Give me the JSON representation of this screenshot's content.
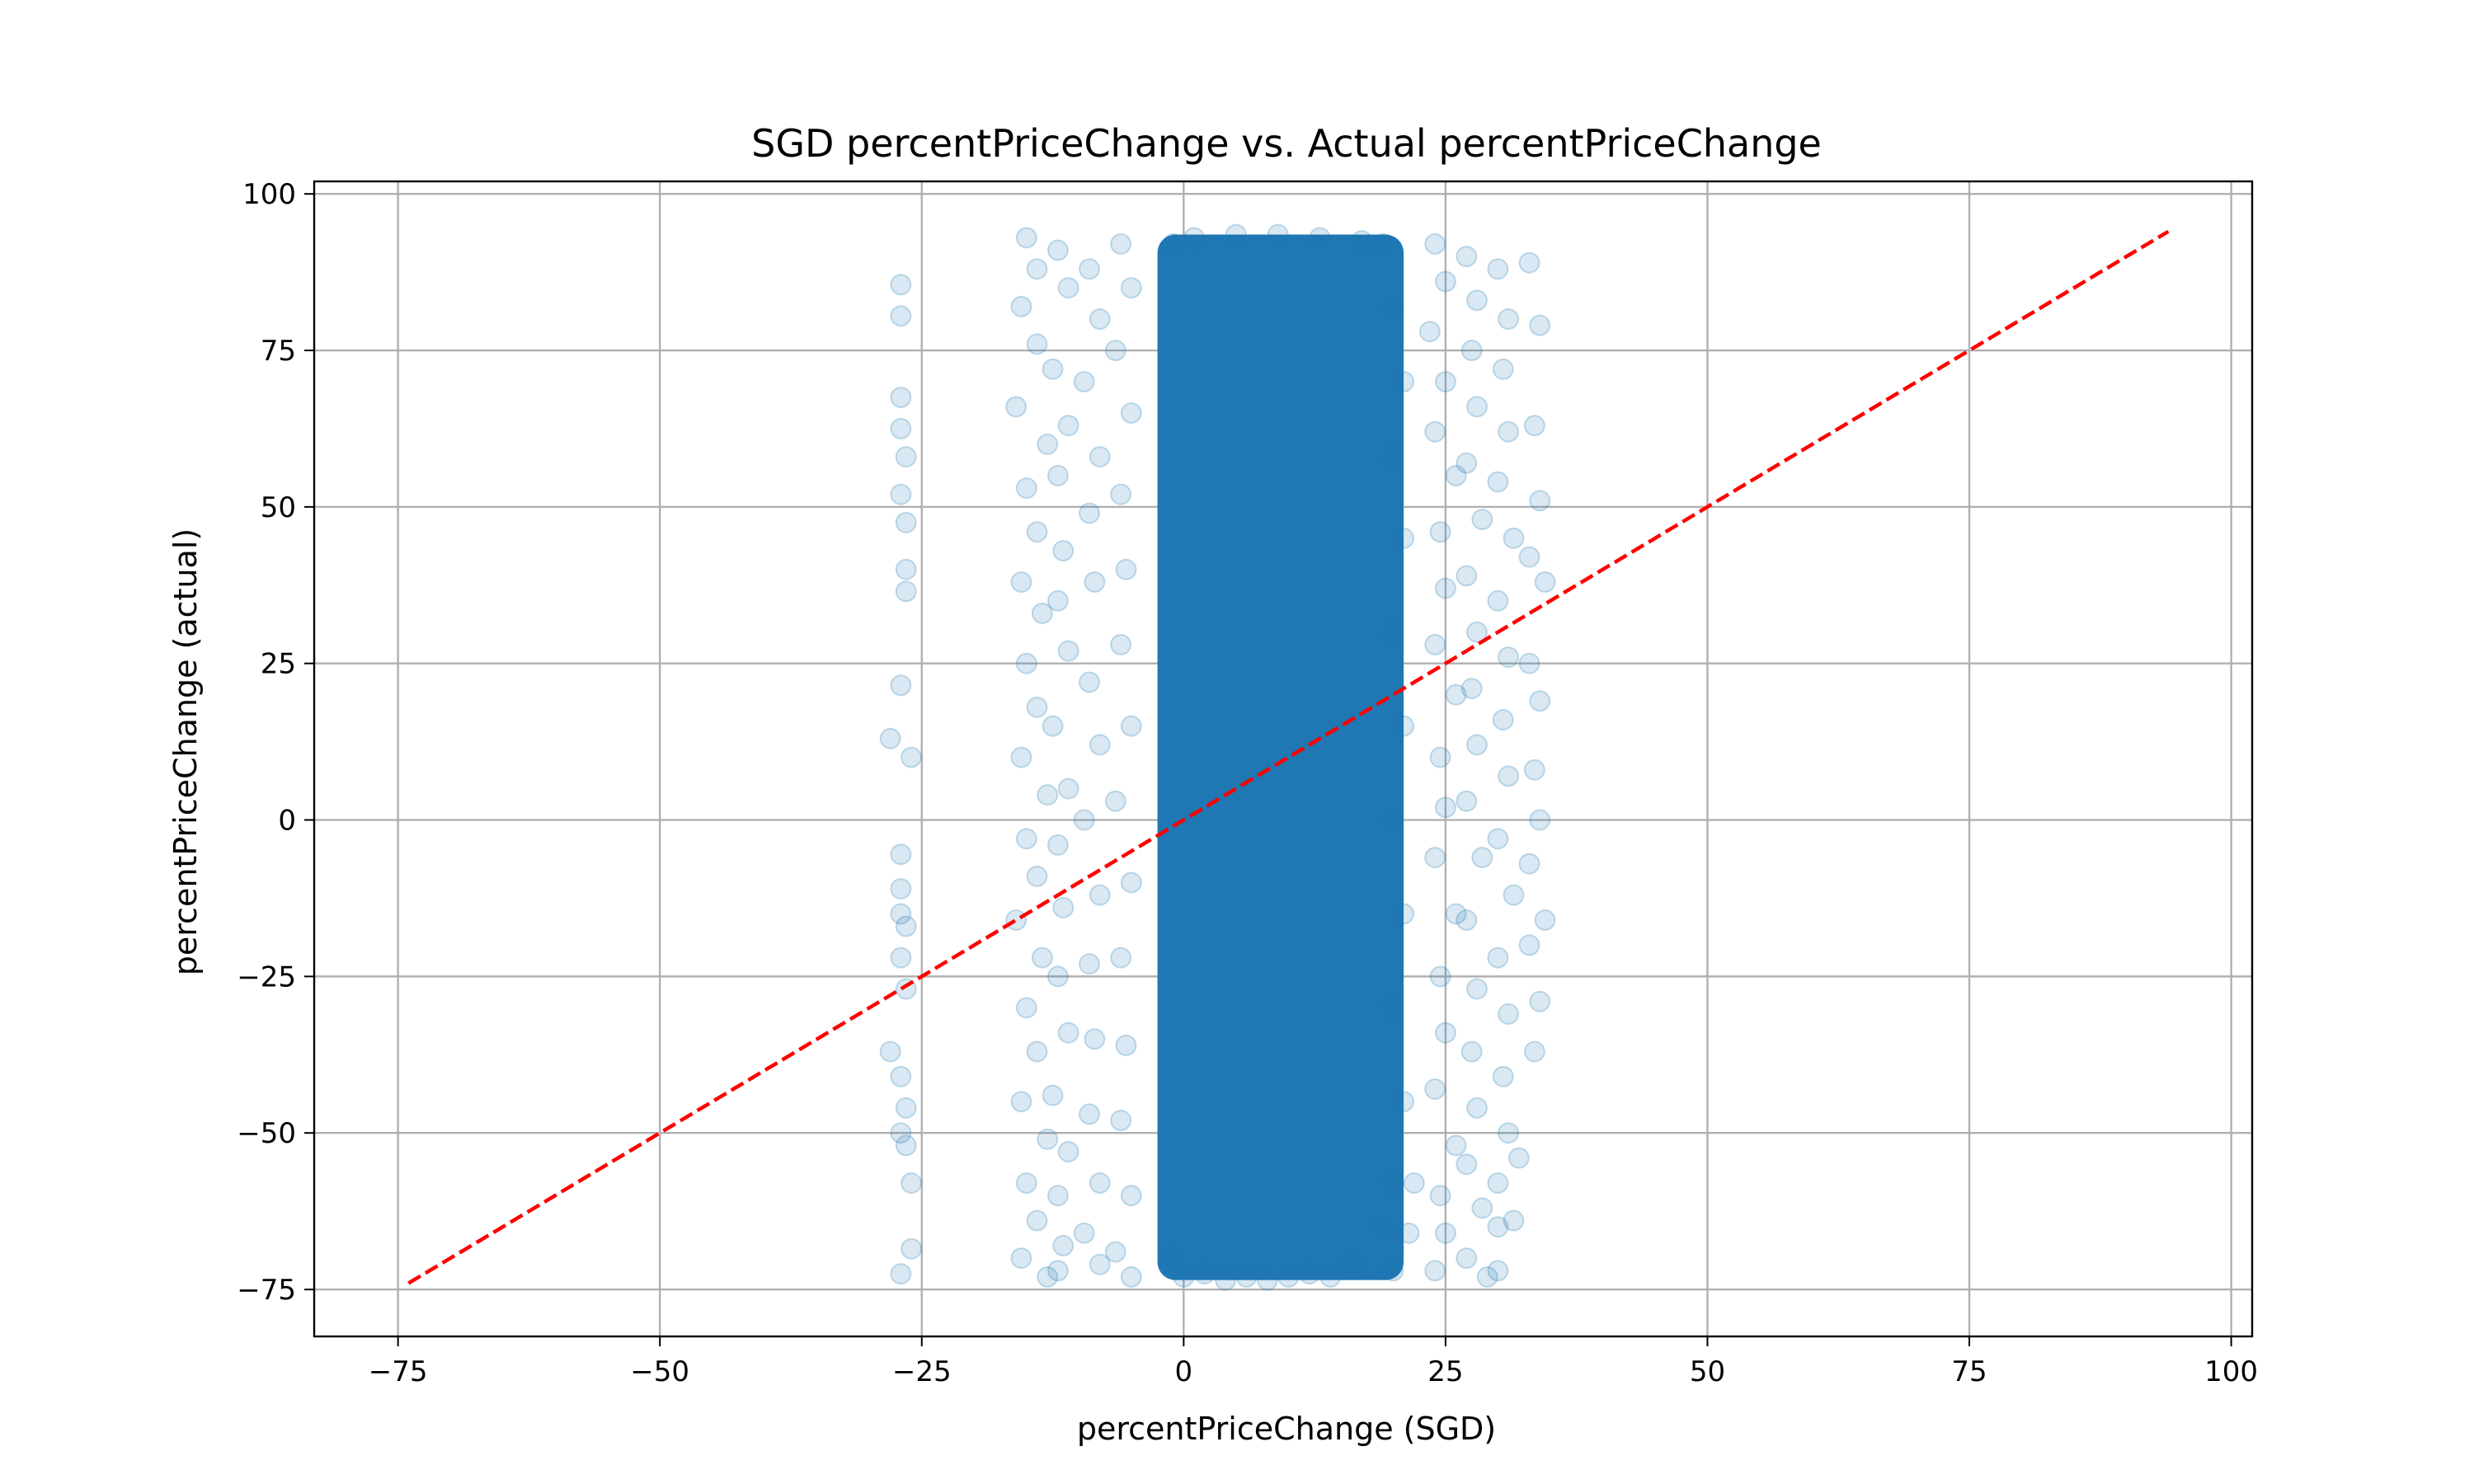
{
  "chart_data": {
    "type": "scatter",
    "title": "SGD percentPriceChange vs. Actual percentPriceChange",
    "xlabel": "percentPriceChange (SGD)",
    "ylabel": "percentPriceChange (actual)",
    "xlim": [
      -83,
      102
    ],
    "ylim": [
      -82.5,
      102
    ],
    "x_ticks": [
      -75,
      -50,
      -25,
      0,
      25,
      50,
      75,
      100
    ],
    "y_ticks": [
      -75,
      -50,
      -25,
      0,
      25,
      50,
      75,
      100
    ],
    "x_tick_labels": [
      "−75",
      "−50",
      "−25",
      "0",
      "25",
      "50",
      "75",
      "100"
    ],
    "y_tick_labels": [
      "−75",
      "−50",
      "−25",
      "0",
      "25",
      "50",
      "75",
      "100"
    ],
    "grid": true,
    "legend": "none",
    "series": [
      {
        "marker": "circle",
        "color": "#1f77b4",
        "alpha": 0.12,
        "points_note": "dense cloud; sampled representative points",
        "dense_core": {
          "x_range": [
            -2.5,
            21
          ],
          "y_range": [
            -73.5,
            93.5
          ]
        },
        "points": [
          [
            -27,
            85.5
          ],
          [
            -27,
            80.5
          ],
          [
            -27,
            67.5
          ],
          [
            -27,
            62.5
          ],
          [
            -26.5,
            58
          ],
          [
            -27,
            52
          ],
          [
            -26.5,
            47.5
          ],
          [
            -26.5,
            40
          ],
          [
            -26.5,
            36.5
          ],
          [
            -27,
            21.5
          ],
          [
            -28,
            13
          ],
          [
            -26,
            10
          ],
          [
            -27,
            -5.5
          ],
          [
            -27,
            -11
          ],
          [
            -27,
            -15
          ],
          [
            -26.5,
            -17
          ],
          [
            -27,
            -22
          ],
          [
            -26.5,
            -27
          ],
          [
            -28,
            -37
          ],
          [
            -27,
            -41
          ],
          [
            -26.5,
            -46
          ],
          [
            -27,
            -50
          ],
          [
            -26.5,
            -52
          ],
          [
            -26,
            -58
          ],
          [
            -26,
            -68.5
          ],
          [
            -27,
            -72.5
          ],
          [
            -15,
            93
          ],
          [
            -14,
            88
          ],
          [
            -15.5,
            82
          ],
          [
            -14,
            76
          ],
          [
            -16,
            66
          ],
          [
            -13,
            60
          ],
          [
            -15,
            53
          ],
          [
            -14,
            46
          ],
          [
            -15.5,
            38
          ],
          [
            -13.5,
            33
          ],
          [
            -15,
            25
          ],
          [
            -14,
            18
          ],
          [
            -15.5,
            10
          ],
          [
            -13,
            4
          ],
          [
            -15,
            -3
          ],
          [
            -14,
            -9
          ],
          [
            -16,
            -16
          ],
          [
            -13.5,
            -22
          ],
          [
            -15,
            -30
          ],
          [
            -14,
            -37
          ],
          [
            -15.5,
            -45
          ],
          [
            -13,
            -51
          ],
          [
            -15,
            -58
          ],
          [
            -14,
            -64
          ],
          [
            -15.5,
            -70
          ],
          [
            -13,
            -73
          ],
          [
            -12,
            91
          ],
          [
            -11,
            85
          ],
          [
            -12.5,
            72
          ],
          [
            -11,
            63
          ],
          [
            -12,
            55
          ],
          [
            -11.5,
            43
          ],
          [
            -12,
            35
          ],
          [
            -11,
            27
          ],
          [
            -12.5,
            15
          ],
          [
            -11,
            5
          ],
          [
            -12,
            -4
          ],
          [
            -11.5,
            -14
          ],
          [
            -12,
            -25
          ],
          [
            -11,
            -34
          ],
          [
            -12.5,
            -44
          ],
          [
            -11,
            -53
          ],
          [
            -12,
            -60
          ],
          [
            -11.5,
            -68
          ],
          [
            -12,
            -72
          ],
          [
            -9,
            88
          ],
          [
            -8,
            80
          ],
          [
            -9.5,
            70
          ],
          [
            -8,
            58
          ],
          [
            -9,
            49
          ],
          [
            -8.5,
            38
          ],
          [
            -9,
            22
          ],
          [
            -8,
            12
          ],
          [
            -9.5,
            0
          ],
          [
            -8,
            -12
          ],
          [
            -9,
            -23
          ],
          [
            -8.5,
            -35
          ],
          [
            -9,
            -47
          ],
          [
            -8,
            -58
          ],
          [
            -9.5,
            -66
          ],
          [
            -8,
            -71
          ],
          [
            -6,
            92
          ],
          [
            -5,
            85
          ],
          [
            -6.5,
            75
          ],
          [
            -5,
            65
          ],
          [
            -6,
            52
          ],
          [
            -5.5,
            40
          ],
          [
            -6,
            28
          ],
          [
            -5,
            15
          ],
          [
            -6.5,
            3
          ],
          [
            -5,
            -10
          ],
          [
            -6,
            -22
          ],
          [
            -5.5,
            -36
          ],
          [
            -6,
            -48
          ],
          [
            -5,
            -60
          ],
          [
            -6.5,
            -69
          ],
          [
            -5,
            -73
          ],
          [
            24,
            92
          ],
          [
            25,
            86
          ],
          [
            23.5,
            78
          ],
          [
            25,
            70
          ],
          [
            24,
            62
          ],
          [
            26,
            55
          ],
          [
            24.5,
            46
          ],
          [
            25,
            37
          ],
          [
            24,
            28
          ],
          [
            26,
            20
          ],
          [
            24.5,
            10
          ],
          [
            25,
            2
          ],
          [
            24,
            -6
          ],
          [
            26,
            -15
          ],
          [
            24.5,
            -25
          ],
          [
            25,
            -34
          ],
          [
            24,
            -43
          ],
          [
            26,
            -52
          ],
          [
            24.5,
            -60
          ],
          [
            25,
            -66
          ],
          [
            24,
            -72
          ],
          [
            27,
            90
          ],
          [
            28,
            83
          ],
          [
            27.5,
            75
          ],
          [
            28,
            66
          ],
          [
            27,
            57
          ],
          [
            28.5,
            48
          ],
          [
            27,
            39
          ],
          [
            28,
            30
          ],
          [
            27.5,
            21
          ],
          [
            28,
            12
          ],
          [
            27,
            3
          ],
          [
            28.5,
            -6
          ],
          [
            27,
            -16
          ],
          [
            28,
            -27
          ],
          [
            27.5,
            -37
          ],
          [
            28,
            -46
          ],
          [
            27,
            -55
          ],
          [
            28.5,
            -62
          ],
          [
            27,
            -70
          ],
          [
            30,
            88
          ],
          [
            31,
            80
          ],
          [
            30.5,
            72
          ],
          [
            31,
            62
          ],
          [
            30,
            54
          ],
          [
            31.5,
            45
          ],
          [
            30,
            35
          ],
          [
            31,
            26
          ],
          [
            30.5,
            16
          ],
          [
            31,
            7
          ],
          [
            30,
            -3
          ],
          [
            31.5,
            -12
          ],
          [
            30,
            -22
          ],
          [
            31,
            -31
          ],
          [
            30.5,
            -41
          ],
          [
            31,
            -50
          ],
          [
            30,
            -58
          ],
          [
            31.5,
            -64
          ],
          [
            30,
            -72
          ],
          [
            33,
            89
          ],
          [
            34,
            79
          ],
          [
            33.5,
            63
          ],
          [
            34,
            51
          ],
          [
            33,
            42
          ],
          [
            34.5,
            38
          ],
          [
            33,
            25
          ],
          [
            34,
            19
          ],
          [
            33.5,
            8
          ],
          [
            34,
            0
          ],
          [
            33,
            -7
          ],
          [
            34.5,
            -16
          ],
          [
            33,
            -20
          ],
          [
            34,
            -29
          ],
          [
            33.5,
            -37
          ],
          [
            32,
            -54
          ],
          [
            30,
            -65
          ],
          [
            29,
            -73
          ],
          [
            19,
            92
          ],
          [
            20,
            82
          ],
          [
            21,
            70
          ],
          [
            20,
            58
          ],
          [
            21,
            45
          ],
          [
            20,
            30
          ],
          [
            21,
            15
          ],
          [
            20,
            0
          ],
          [
            21,
            -15
          ],
          [
            20,
            -30
          ],
          [
            21,
            -45
          ],
          [
            20,
            -58
          ],
          [
            19,
            -65
          ],
          [
            20,
            -72
          ],
          [
            21.5,
            -66
          ],
          [
            22,
            -58
          ],
          [
            0,
            -73
          ],
          [
            2,
            -72.5
          ],
          [
            4,
            -73.5
          ],
          [
            6,
            -73
          ],
          [
            8,
            -73.5
          ],
          [
            10,
            -73
          ],
          [
            12,
            -72.5
          ],
          [
            14,
            -73
          ],
          [
            -1,
            -70
          ],
          [
            16,
            -71
          ],
          [
            1,
            93
          ],
          [
            5,
            93.5
          ],
          [
            9,
            93.5
          ],
          [
            13,
            93
          ],
          [
            17,
            92.5
          ],
          [
            -1,
            92
          ]
        ]
      },
      {
        "name": "",
        "type": "line",
        "color": "#ff0000",
        "linestyle": "dashed",
        "x": [
          -74,
          94
        ],
        "y": [
          -74,
          94
        ]
      }
    ]
  }
}
